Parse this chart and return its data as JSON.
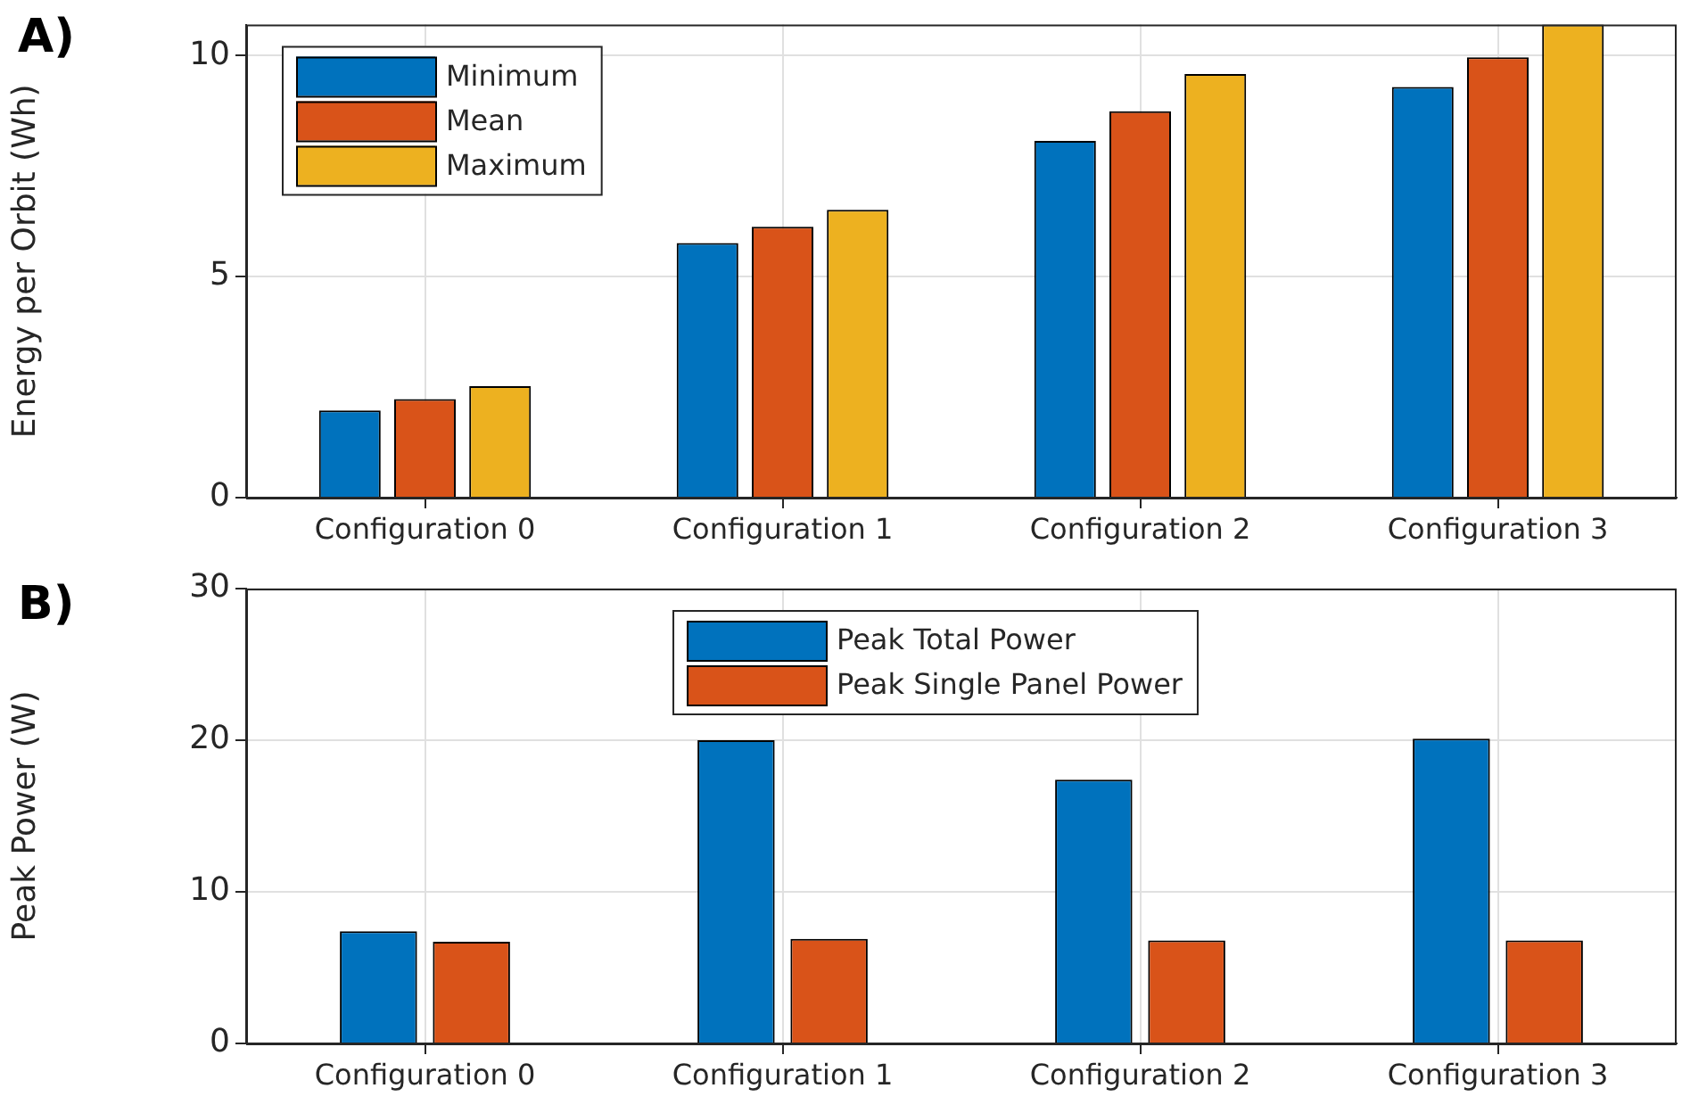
{
  "chart_data": [
    {
      "type": "bar",
      "title": "A)",
      "ylabel": "Energy per Orbit (Wh)",
      "categories": [
        "Configuration 0",
        "Configuration 1",
        "Configuration 2",
        "Configuration 3"
      ],
      "series": [
        {
          "name": "Minimum",
          "color": "#0072bd",
          "values": [
            1.97,
            5.76,
            8.07,
            9.29
          ]
        },
        {
          "name": "Mean",
          "color": "#d95319",
          "values": [
            2.23,
            6.13,
            8.74,
            9.96
          ]
        },
        {
          "name": "Maximum",
          "color": "#edb120",
          "values": [
            2.52,
            6.51,
            9.58,
            10.7
          ]
        }
      ],
      "ylim": [
        0,
        10.7
      ],
      "yticks": [
        0,
        5,
        10
      ],
      "grid": true,
      "legend": "top left"
    },
    {
      "type": "bar",
      "title": "B)",
      "ylabel": "Peak Power (W)",
      "categories": [
        "Configuration 0",
        "Configuration 1",
        "Configuration 2",
        "Configuration 3"
      ],
      "series": [
        {
          "name": "Peak Total Power",
          "color": "#0072bd",
          "values": [
            7.4,
            20.0,
            17.4,
            20.1
          ]
        },
        {
          "name": "Peak Single Panel Power",
          "color": "#d95319",
          "values": [
            6.7,
            6.9,
            6.8,
            6.8
          ]
        }
      ],
      "ylim": [
        0,
        30
      ],
      "yticks": [
        0,
        10,
        20,
        30
      ],
      "grid": true,
      "legend": "top"
    }
  ]
}
